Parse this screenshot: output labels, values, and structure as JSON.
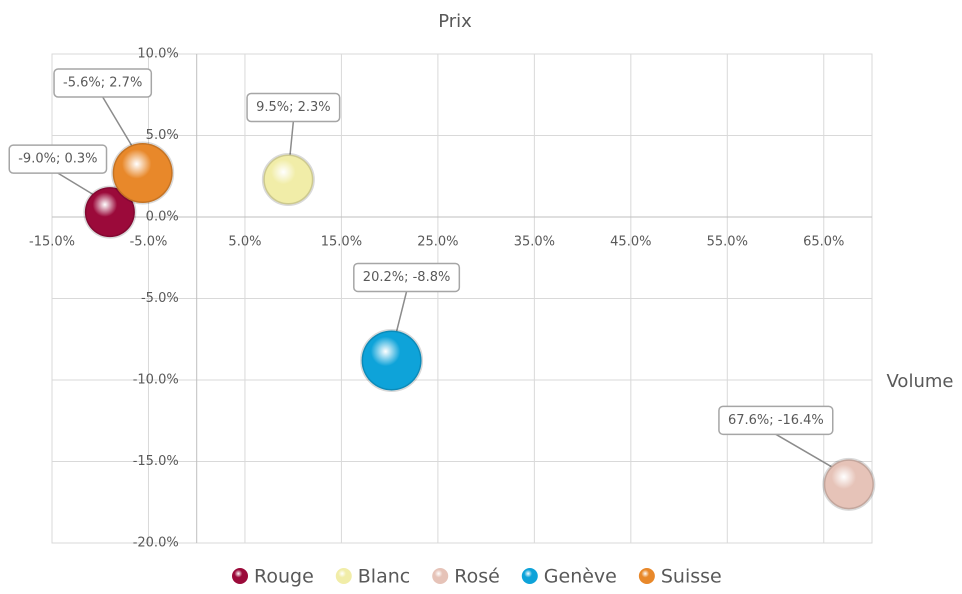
{
  "chart_data": {
    "type": "bubble",
    "title": "Prix",
    "x_label": "Volume",
    "xlim": [
      -15,
      70
    ],
    "ylim": [
      -20,
      10
    ],
    "xticks": [
      {
        "value": -15,
        "label": "-15.0%"
      },
      {
        "value": -5,
        "label": "-5.0%"
      },
      {
        "value": 5,
        "label": "5.0%"
      },
      {
        "value": 15,
        "label": "15.0%"
      },
      {
        "value": 25,
        "label": "25.0%"
      },
      {
        "value": 35,
        "label": "35.0%"
      },
      {
        "value": 45,
        "label": "45.0%"
      },
      {
        "value": 55,
        "label": "55.0%"
      },
      {
        "value": 65,
        "label": "65.0%"
      }
    ],
    "yticks": [
      {
        "value": -20,
        "label": "-20.0%"
      },
      {
        "value": -15,
        "label": "-15.0%"
      },
      {
        "value": -10,
        "label": "-10.0%"
      },
      {
        "value": -5,
        "label": "-5.0%"
      },
      {
        "value": 0,
        "label": "0.0%"
      },
      {
        "value": 5,
        "label": "5.0%"
      },
      {
        "value": 10,
        "label": "10.0%"
      }
    ],
    "grid": true,
    "legend": "bottom",
    "series": [
      {
        "name": "Rouge",
        "color": "#9b0a3a",
        "x": [
          -9.0
        ],
        "values": [
          0.3
        ],
        "sizes": [
          25
        ],
        "value_labels": [
          "-9.0%; 0.3%"
        ]
      },
      {
        "name": "Blanc",
        "color": "#f1eda8",
        "x": [
          9.5
        ],
        "values": [
          2.3
        ],
        "sizes": [
          25
        ],
        "value_labels": [
          "9.5%; 2.3%"
        ]
      },
      {
        "name": "Rosé",
        "color": "#e6c3b8",
        "x": [
          67.6
        ],
        "values": [
          -16.4
        ],
        "sizes": [
          25
        ],
        "value_labels": [
          "67.6%; -16.4%"
        ]
      },
      {
        "name": "Genève",
        "color": "#0ea3d9",
        "x": [
          20.2
        ],
        "values": [
          -8.8
        ],
        "sizes": [
          30
        ],
        "value_labels": [
          "20.2%; -8.8%"
        ]
      },
      {
        "name": "Suisse",
        "color": "#e8882a",
        "x": [
          -5.6
        ],
        "values": [
          2.7
        ],
        "sizes": [
          30
        ],
        "value_labels": [
          "-5.6%; 2.7%"
        ]
      }
    ]
  }
}
